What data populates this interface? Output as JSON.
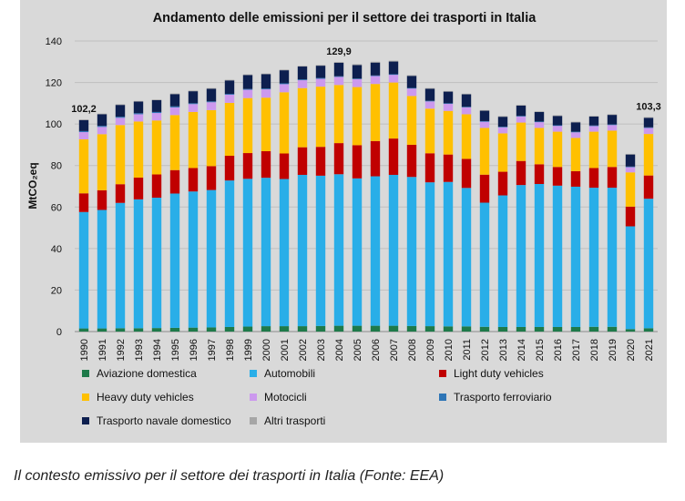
{
  "caption": "Il contesto emissivo per il settore dei trasporti in Italia (Fonte: EEA)",
  "chart_data": {
    "type": "bar",
    "stacked": true,
    "title": "Andamento delle emissioni per il settore dei trasporti in Italia",
    "ylabel": "MtCO₂eq",
    "xlabel": "",
    "ylim": [
      0,
      140
    ],
    "yticks": [
      0,
      20,
      40,
      60,
      80,
      100,
      120,
      140
    ],
    "grid": true,
    "legend_position": "bottom",
    "categories": [
      "1990",
      "1991",
      "1992",
      "1993",
      "1994",
      "1995",
      "1996",
      "1997",
      "1998",
      "1999",
      "2000",
      "2001",
      "2002",
      "2003",
      "2004",
      "2005",
      "2006",
      "2007",
      "2008",
      "2009",
      "2010",
      "2011",
      "2012",
      "2013",
      "2014",
      "2015",
      "2016",
      "2017",
      "2018",
      "2019",
      "2020",
      "2021"
    ],
    "series": [
      {
        "name": "Aviazione domestica",
        "color": "#1e7a4a",
        "values": [
          1.5,
          1.5,
          1.6,
          1.6,
          1.7,
          1.8,
          1.9,
          2.0,
          2.2,
          2.4,
          2.6,
          2.6,
          2.6,
          2.7,
          2.8,
          2.8,
          2.8,
          2.8,
          2.7,
          2.6,
          2.5,
          2.5,
          2.3,
          2.2,
          2.2,
          2.2,
          2.2,
          2.2,
          2.3,
          2.3,
          1.2,
          1.6
        ]
      },
      {
        "name": "Automobili",
        "color": "#29aee8",
        "values": [
          56.1,
          57.1,
          60.4,
          62.1,
          62.8,
          64.7,
          65.6,
          66.2,
          70.6,
          71.2,
          71.5,
          70.9,
          72.9,
          72.4,
          73.0,
          71.0,
          72.0,
          72.7,
          71.8,
          69.3,
          69.6,
          66.7,
          59.8,
          63.4,
          68.4,
          68.9,
          68.1,
          67.6,
          67.0,
          67.0,
          49.5,
          62.4
        ]
      },
      {
        "name": "Light duty vehicles",
        "color": "#c00000",
        "values": [
          9.0,
          9.5,
          9.0,
          10.5,
          11.2,
          11.3,
          11.3,
          11.5,
          11.9,
          12.4,
          12.8,
          12.3,
          13.3,
          13.9,
          15.0,
          16.0,
          17.0,
          17.5,
          15.5,
          14.0,
          13.2,
          14.0,
          13.5,
          11.4,
          11.6,
          9.5,
          9.0,
          7.5,
          9.5,
          10.0,
          9.5,
          11.2
        ]
      },
      {
        "name": "Heavy duty vehicles",
        "color": "#ffc000",
        "values": [
          26.0,
          27.0,
          28.5,
          27.0,
          26.0,
          26.5,
          27.0,
          27.0,
          25.5,
          26.5,
          25.8,
          29.5,
          28.5,
          29.0,
          28.0,
          28.0,
          27.5,
          27.0,
          23.5,
          21.5,
          21.0,
          21.5,
          22.5,
          18.5,
          18.5,
          17.5,
          17.0,
          16.0,
          17.5,
          17.5,
          16.5,
          20.0
        ]
      },
      {
        "name": "Motocicli",
        "color": "#cc99ee",
        "values": [
          3.5,
          3.5,
          3.5,
          3.5,
          3.6,
          3.7,
          3.8,
          3.8,
          3.9,
          4.0,
          4.0,
          3.9,
          3.8,
          3.8,
          3.9,
          3.8,
          3.8,
          3.7,
          3.6,
          3.5,
          3.4,
          3.3,
          3.0,
          2.9,
          2.9,
          2.8,
          2.8,
          2.7,
          2.7,
          2.7,
          2.5,
          2.9
        ]
      },
      {
        "name": "Trasporto ferroviario",
        "color": "#2e75b6",
        "values": [
          0.5,
          0.5,
          0.5,
          0.5,
          0.5,
          0.5,
          0.4,
          0.4,
          0.4,
          0.4,
          0.4,
          0.4,
          0.4,
          0.4,
          0.3,
          0.3,
          0.3,
          0.3,
          0.3,
          0.3,
          0.3,
          0.3,
          0.3,
          0.3,
          0.3,
          0.3,
          0.3,
          0.3,
          0.3,
          0.3,
          0.3,
          0.3
        ]
      },
      {
        "name": "Trasporto navale domestico",
        "color": "#0d1f4f",
        "values": [
          5.3,
          5.6,
          5.7,
          5.6,
          5.7,
          5.9,
          5.8,
          6.1,
          6.5,
          6.7,
          6.9,
          6.3,
          6.2,
          5.9,
          6.5,
          6.5,
          6.2,
          6.1,
          5.8,
          5.8,
          5.6,
          6.0,
          5.0,
          4.8,
          5.0,
          4.6,
          4.5,
          4.5,
          4.3,
          4.6,
          5.8,
          4.6
        ]
      },
      {
        "name": "Altri trasporti",
        "color": "#a6a6a6",
        "values": [
          0.3,
          0.3,
          0.3,
          0.3,
          0.3,
          0.3,
          0.3,
          0.3,
          0.3,
          0.3,
          0.3,
          0.3,
          0.3,
          0.3,
          0.4,
          0.4,
          0.4,
          0.4,
          0.3,
          0.3,
          0.3,
          0.3,
          0.3,
          0.3,
          0.3,
          0.3,
          0.3,
          0.3,
          0.3,
          0.3,
          0.3,
          0.3
        ]
      }
    ],
    "annotations": [
      {
        "category": "1990",
        "label": "102,2",
        "value": 102.2
      },
      {
        "category": "2004",
        "label": "129,9",
        "value": 129.9
      },
      {
        "category": "2021",
        "label": "103,3",
        "value": 103.3
      }
    ]
  }
}
